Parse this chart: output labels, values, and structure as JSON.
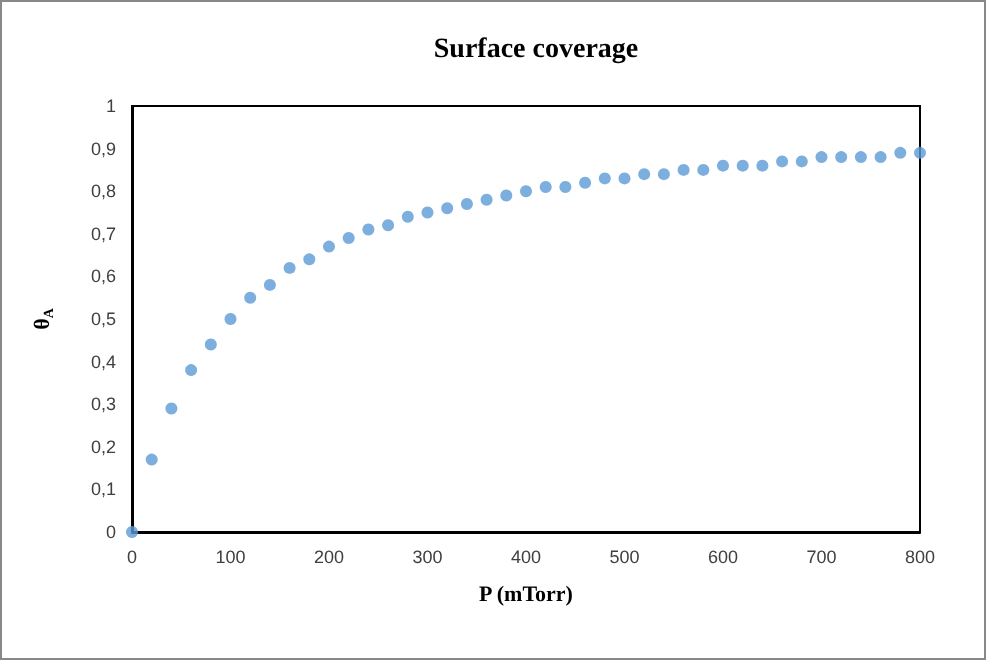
{
  "chart_data": {
    "type": "scatter",
    "title": "Surface coverage",
    "xlabel": "P (mTorr)",
    "ylabel": "θ$_{A}$",
    "x": [
      0,
      20,
      40,
      60,
      80,
      100,
      120,
      140,
      160,
      180,
      200,
      220,
      240,
      260,
      280,
      300,
      320,
      340,
      360,
      380,
      400,
      420,
      440,
      460,
      480,
      500,
      520,
      540,
      560,
      580,
      600,
      620,
      640,
      660,
      680,
      700,
      720,
      740,
      760,
      780,
      800
    ],
    "series": [
      {
        "color": "#5b9bd5",
        "values": [
          0,
          0.17,
          0.29,
          0.38,
          0.44,
          0.5,
          0.55,
          0.58,
          0.62,
          0.64,
          0.67,
          0.69,
          0.71,
          0.72,
          0.74,
          0.75,
          0.76,
          0.77,
          0.78,
          0.79,
          0.8,
          0.81,
          0.81,
          0.82,
          0.83,
          0.83,
          0.84,
          0.84,
          0.85,
          0.85,
          0.86,
          0.86,
          0.86,
          0.87,
          0.87,
          0.88,
          0.88,
          0.88,
          0.88,
          0.89,
          0.89
        ]
      }
    ],
    "xlim": [
      0,
      800
    ],
    "xticks": [
      0,
      100,
      200,
      300,
      400,
      500,
      600,
      700,
      800
    ],
    "ylim": [
      0,
      1
    ],
    "yticks": [
      0,
      {
        "value": 0.1,
        "label": "0,1"
      },
      {
        "value": 0.2,
        "label": "0,2"
      },
      {
        "value": 0.3,
        "label": "0,3"
      },
      {
        "value": 0.4,
        "label": "0,4"
      },
      {
        "value": 0.5,
        "label": "0,5"
      },
      {
        "value": 0.6,
        "label": "0,6"
      },
      {
        "value": 0.7,
        "label": "0,7"
      },
      {
        "value": 0.8,
        "label": "0,8"
      },
      {
        "value": 0.9,
        "label": "0,9"
      },
      1
    ],
    "marker": "circle"
  }
}
